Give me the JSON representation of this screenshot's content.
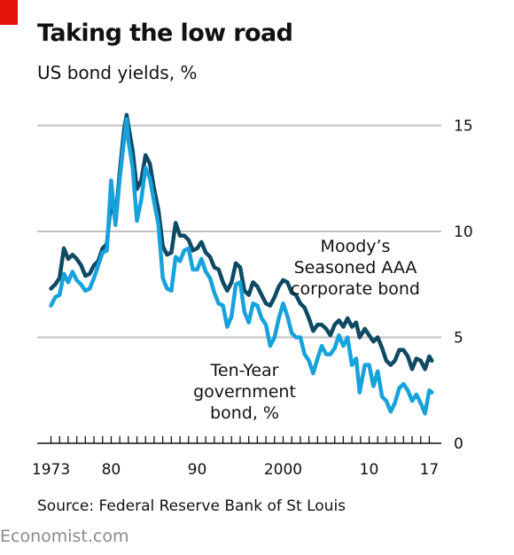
{
  "title": "Taking the low road",
  "subtitle": "US bond yields, %",
  "source": "Source: Federal Reserve Bank of St Louis",
  "brand": "Economist.com",
  "colors": {
    "accent": "#e3120b",
    "corporate": "#0e4a64",
    "government": "#17a2dc",
    "grid": "#c2c2c2"
  },
  "chart_data": {
    "type": "line",
    "ylim": [
      0,
      15.9
    ],
    "xlim": [
      1971.4,
      2018.4
    ],
    "yticks": [
      0,
      5,
      10,
      15
    ],
    "ytick_labels": [
      "0",
      "5",
      "10",
      "15"
    ],
    "xtick_labels": [
      {
        "x": 1973,
        "label": "1973"
      },
      {
        "x": 1980,
        "label": "80"
      },
      {
        "x": 1990,
        "label": "90"
      },
      {
        "x": 2000,
        "label": "2000"
      },
      {
        "x": 2010,
        "label": "10"
      },
      {
        "x": 2017,
        "label": "17"
      }
    ],
    "grid": true,
    "series": [
      {
        "name": "Moody’s Seasoned AAA corporate bond",
        "label_lines": [
          "Moody’s",
          "Seasoned AAA",
          "corporate bond"
        ],
        "points": [
          [
            1973.0,
            7.3
          ],
          [
            1973.5,
            7.5
          ],
          [
            1974.0,
            7.8
          ],
          [
            1974.5,
            9.2
          ],
          [
            1975.0,
            8.7
          ],
          [
            1975.5,
            8.9
          ],
          [
            1976.0,
            8.7
          ],
          [
            1976.5,
            8.4
          ],
          [
            1977.0,
            7.9
          ],
          [
            1977.5,
            8.0
          ],
          [
            1978.0,
            8.4
          ],
          [
            1978.5,
            8.6
          ],
          [
            1979.0,
            9.2
          ],
          [
            1979.5,
            9.4
          ],
          [
            1980.0,
            11.5
          ],
          [
            1980.5,
            10.5
          ],
          [
            1981.0,
            12.8
          ],
          [
            1981.5,
            14.8
          ],
          [
            1981.8,
            15.5
          ],
          [
            1982.0,
            15.0
          ],
          [
            1982.5,
            13.8
          ],
          [
            1983.0,
            12.0
          ],
          [
            1983.5,
            12.4
          ],
          [
            1984.0,
            13.6
          ],
          [
            1984.5,
            13.2
          ],
          [
            1985.0,
            12.0
          ],
          [
            1985.5,
            11.0
          ],
          [
            1986.0,
            9.3
          ],
          [
            1986.5,
            8.9
          ],
          [
            1987.0,
            9.0
          ],
          [
            1987.5,
            10.4
          ],
          [
            1988.0,
            9.8
          ],
          [
            1988.5,
            9.8
          ],
          [
            1989.0,
            9.6
          ],
          [
            1989.5,
            9.1
          ],
          [
            1990.0,
            9.2
          ],
          [
            1990.5,
            9.5
          ],
          [
            1991.0,
            9.0
          ],
          [
            1991.5,
            8.8
          ],
          [
            1992.0,
            8.3
          ],
          [
            1992.5,
            8.2
          ],
          [
            1993.0,
            7.6
          ],
          [
            1993.5,
            7.2
          ],
          [
            1994.0,
            7.6
          ],
          [
            1994.5,
            8.5
          ],
          [
            1995.0,
            8.3
          ],
          [
            1995.5,
            7.2
          ],
          [
            1996.0,
            7.0
          ],
          [
            1996.5,
            7.6
          ],
          [
            1997.0,
            7.4
          ],
          [
            1997.5,
            7.0
          ],
          [
            1998.0,
            6.6
          ],
          [
            1998.5,
            6.5
          ],
          [
            1999.0,
            6.9
          ],
          [
            1999.5,
            7.4
          ],
          [
            2000.0,
            7.7
          ],
          [
            2000.5,
            7.6
          ],
          [
            2001.0,
            7.1
          ],
          [
            2001.5,
            7.0
          ],
          [
            2002.0,
            6.6
          ],
          [
            2002.5,
            6.4
          ],
          [
            2003.0,
            5.9
          ],
          [
            2003.5,
            5.3
          ],
          [
            2004.0,
            5.6
          ],
          [
            2004.5,
            5.6
          ],
          [
            2005.0,
            5.4
          ],
          [
            2005.5,
            5.1
          ],
          [
            2006.0,
            5.6
          ],
          [
            2006.5,
            5.8
          ],
          [
            2007.0,
            5.5
          ],
          [
            2007.5,
            5.9
          ],
          [
            2008.0,
            5.5
          ],
          [
            2008.5,
            5.7
          ],
          [
            2008.9,
            5.0
          ],
          [
            2009.5,
            5.4
          ],
          [
            2010.0,
            5.1
          ],
          [
            2010.5,
            4.8
          ],
          [
            2011.0,
            5.0
          ],
          [
            2011.5,
            4.5
          ],
          [
            2012.0,
            3.9
          ],
          [
            2012.5,
            3.7
          ],
          [
            2013.0,
            3.9
          ],
          [
            2013.5,
            4.4
          ],
          [
            2014.0,
            4.4
          ],
          [
            2014.5,
            4.1
          ],
          [
            2015.0,
            3.5
          ],
          [
            2015.5,
            4.0
          ],
          [
            2016.0,
            3.9
          ],
          [
            2016.5,
            3.5
          ],
          [
            2017.0,
            4.1
          ],
          [
            2017.3,
            3.9
          ]
        ]
      },
      {
        "name": "Ten-Year government bond, %",
        "label_lines": [
          "Ten-Year",
          "government",
          "bond, %"
        ],
        "points": [
          [
            1973.0,
            6.5
          ],
          [
            1973.5,
            6.9
          ],
          [
            1974.0,
            7.0
          ],
          [
            1974.5,
            8.0
          ],
          [
            1975.0,
            7.6
          ],
          [
            1975.5,
            8.1
          ],
          [
            1976.0,
            7.7
          ],
          [
            1976.5,
            7.5
          ],
          [
            1977.0,
            7.2
          ],
          [
            1977.5,
            7.3
          ],
          [
            1978.0,
            7.8
          ],
          [
            1978.5,
            8.4
          ],
          [
            1979.0,
            9.0
          ],
          [
            1979.5,
            9.1
          ],
          [
            1980.0,
            12.4
          ],
          [
            1980.5,
            10.3
          ],
          [
            1981.0,
            12.5
          ],
          [
            1981.5,
            14.3
          ],
          [
            1981.8,
            15.3
          ],
          [
            1982.0,
            14.3
          ],
          [
            1982.5,
            13.0
          ],
          [
            1983.0,
            10.5
          ],
          [
            1983.5,
            11.5
          ],
          [
            1984.0,
            13.0
          ],
          [
            1984.5,
            12.5
          ],
          [
            1985.0,
            11.4
          ],
          [
            1985.5,
            10.3
          ],
          [
            1986.0,
            7.8
          ],
          [
            1986.5,
            7.3
          ],
          [
            1987.0,
            7.2
          ],
          [
            1987.5,
            8.8
          ],
          [
            1988.0,
            8.6
          ],
          [
            1988.5,
            9.1
          ],
          [
            1989.0,
            9.2
          ],
          [
            1989.5,
            8.2
          ],
          [
            1990.0,
            8.2
          ],
          [
            1990.5,
            8.7
          ],
          [
            1991.0,
            8.1
          ],
          [
            1991.5,
            7.8
          ],
          [
            1992.0,
            7.1
          ],
          [
            1992.5,
            6.6
          ],
          [
            1993.0,
            6.5
          ],
          [
            1993.5,
            5.5
          ],
          [
            1994.0,
            6.0
          ],
          [
            1994.5,
            7.5
          ],
          [
            1995.0,
            7.6
          ],
          [
            1995.5,
            6.2
          ],
          [
            1996.0,
            5.7
          ],
          [
            1996.5,
            6.6
          ],
          [
            1997.0,
            6.5
          ],
          [
            1997.5,
            5.9
          ],
          [
            1998.0,
            5.6
          ],
          [
            1998.5,
            4.6
          ],
          [
            1999.0,
            5.0
          ],
          [
            1999.5,
            5.9
          ],
          [
            2000.0,
            6.6
          ],
          [
            2000.5,
            6.0
          ],
          [
            2001.0,
            5.2
          ],
          [
            2001.5,
            5.0
          ],
          [
            2002.0,
            5.0
          ],
          [
            2002.5,
            4.2
          ],
          [
            2003.0,
            3.9
          ],
          [
            2003.5,
            3.3
          ],
          [
            2004.0,
            4.0
          ],
          [
            2004.5,
            4.6
          ],
          [
            2005.0,
            4.2
          ],
          [
            2005.5,
            4.2
          ],
          [
            2006.0,
            4.5
          ],
          [
            2006.5,
            5.1
          ],
          [
            2007.0,
            4.6
          ],
          [
            2007.5,
            5.0
          ],
          [
            2008.0,
            3.7
          ],
          [
            2008.5,
            4.0
          ],
          [
            2008.9,
            2.4
          ],
          [
            2009.5,
            3.7
          ],
          [
            2010.0,
            3.7
          ],
          [
            2010.5,
            2.7
          ],
          [
            2011.0,
            3.4
          ],
          [
            2011.5,
            2.2
          ],
          [
            2012.0,
            2.0
          ],
          [
            2012.5,
            1.5
          ],
          [
            2013.0,
            1.9
          ],
          [
            2013.5,
            2.6
          ],
          [
            2014.0,
            2.8
          ],
          [
            2014.5,
            2.5
          ],
          [
            2015.0,
            2.0
          ],
          [
            2015.5,
            2.3
          ],
          [
            2016.0,
            1.9
          ],
          [
            2016.5,
            1.4
          ],
          [
            2017.0,
            2.5
          ],
          [
            2017.3,
            2.4
          ]
        ]
      }
    ]
  }
}
